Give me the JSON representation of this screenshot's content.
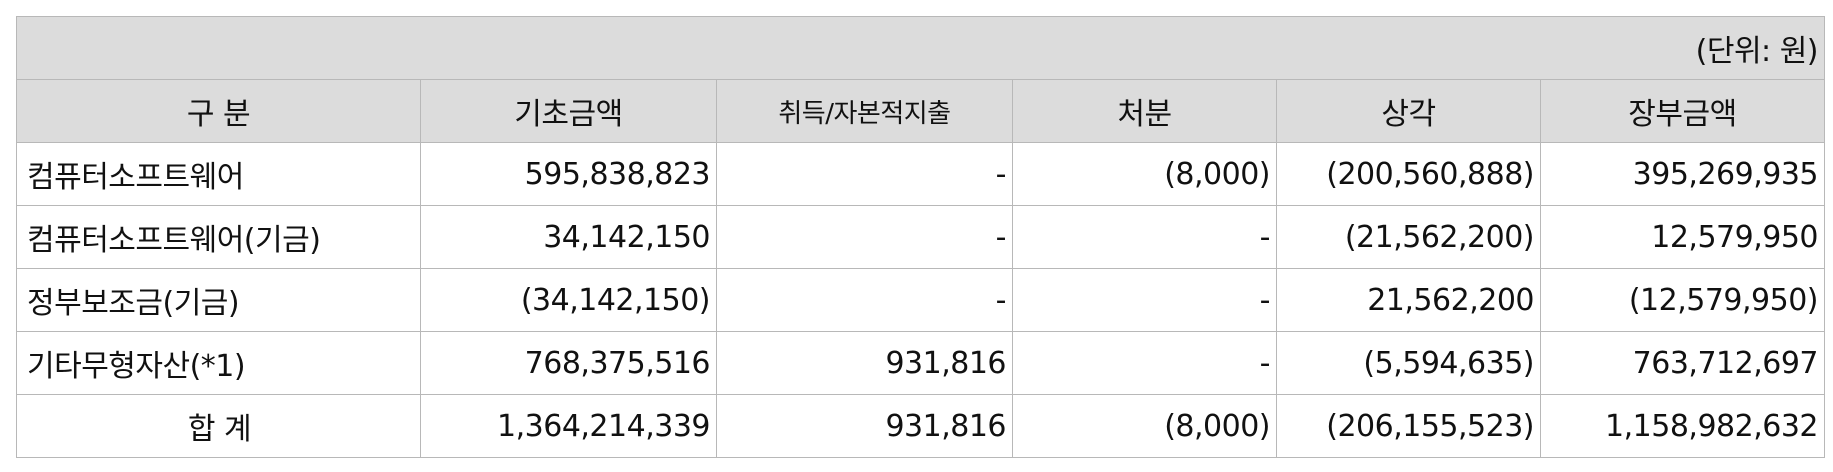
{
  "unit_note": "(단위: 원)",
  "headers": [
    "구 분",
    "기초금액",
    "취득/자본적지출",
    "처분",
    "상각",
    "장부금액"
  ],
  "rows": [
    {
      "label": "컴퓨터소프트웨어",
      "values": [
        "595,838,823",
        "-",
        "(8,000)",
        "(200,560,888)",
        "395,269,935"
      ]
    },
    {
      "label": "컴퓨터소프트웨어(기금)",
      "values": [
        "34,142,150",
        "-",
        "-",
        "(21,562,200)",
        "12,579,950"
      ]
    },
    {
      "label": "정부보조금(기금)",
      "values": [
        "(34,142,150)",
        "-",
        "-",
        "21,562,200",
        "(12,579,950)"
      ]
    },
    {
      "label": "기타무형자산(*1)",
      "values": [
        "768,375,516",
        "931,816",
        "-",
        "(5,594,635)",
        "763,712,697"
      ]
    },
    {
      "label": "합 계",
      "values": [
        "1,364,214,339",
        "931,816",
        "(8,000)",
        "(206,155,523)",
        "1,158,982,632"
      ]
    }
  ]
}
